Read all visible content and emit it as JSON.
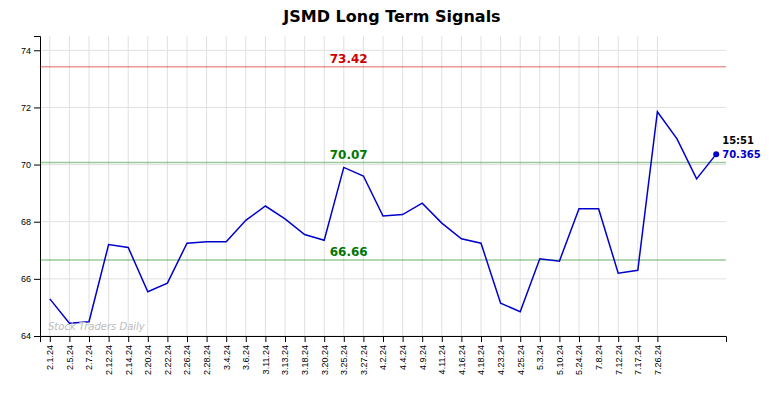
{
  "chart_data": {
    "type": "line",
    "title": "JSMD Long Term Signals",
    "categories": [
      "2.1.24",
      "2.5.24",
      "2.7.24",
      "2.12.24",
      "2.14.24",
      "2.20.24",
      "2.22.24",
      "2.26.24",
      "2.28.24",
      "3.4.24",
      "3.6.24",
      "3.11.24",
      "3.13.24",
      "3.18.24",
      "3.20.24",
      "3.25.24",
      "3.27.24",
      "4.2.24",
      "4.4.24",
      "4.9.24",
      "4.11.24",
      "4.16.24",
      "4.18.24",
      "4.23.24",
      "4.25.24",
      "5.3.24",
      "5.10.24",
      "5.24.24",
      "7.8.24",
      "7.12.24",
      "7.17.24",
      "7.26.24",
      null,
      null,
      null
    ],
    "values": [
      65.3,
      64.45,
      64.5,
      67.2,
      67.1,
      65.55,
      65.85,
      67.25,
      67.3,
      67.3,
      68.05,
      68.55,
      68.1,
      67.55,
      67.35,
      69.9,
      69.6,
      68.2,
      68.25,
      68.65,
      67.95,
      67.4,
      67.25,
      65.15,
      64.85,
      66.7,
      66.62,
      68.45,
      68.45,
      66.2,
      66.3,
      71.85,
      70.9,
      69.5,
      70.365
    ],
    "color": "#0000cc",
    "ylim": [
      64,
      74.5
    ],
    "yticks": [
      64,
      66,
      68,
      70,
      72,
      74
    ],
    "grid": true,
    "reference_lines": [
      {
        "value": 73.42,
        "color": "#cc0000"
      },
      {
        "value": 70.07,
        "color": "#007700"
      },
      {
        "value": 66.66,
        "color": "#007700"
      }
    ],
    "annotations": [
      {
        "text": "15:51"
      }
    ],
    "watermark": "Stock Traders Daily"
  }
}
